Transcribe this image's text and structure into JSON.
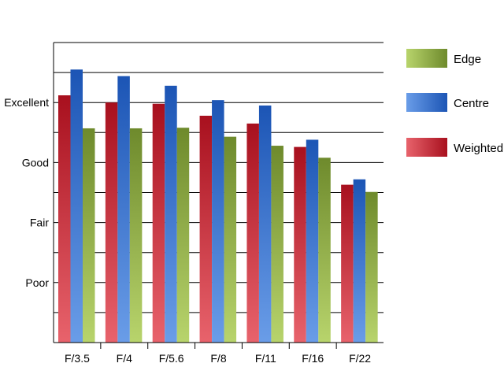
{
  "chart_data": {
    "type": "bar",
    "title": "",
    "xlabel": "",
    "ylabel": "",
    "categories": [
      "F/3.5",
      "F/4",
      "F/5.6",
      "F/8",
      "F/11",
      "F/16",
      "F/22"
    ],
    "ylim": [
      0,
      5
    ],
    "y_ticks": [
      {
        "label": "Poor",
        "value": 1
      },
      {
        "label": "Fair",
        "value": 2
      },
      {
        "label": "Good",
        "value": 3
      },
      {
        "label": "Excellent",
        "value": 4
      }
    ],
    "grid": true,
    "legend_position": "right",
    "series": [
      {
        "name": "Weighted",
        "key": "weighted",
        "values": [
          4.12,
          4.0,
          3.98,
          3.78,
          3.65,
          3.26,
          2.63
        ]
      },
      {
        "name": "Centre",
        "key": "centre",
        "values": [
          4.55,
          4.44,
          4.28,
          4.04,
          3.95,
          3.38,
          2.72
        ]
      },
      {
        "name": "Edge",
        "key": "edge",
        "values": [
          3.57,
          3.57,
          3.58,
          3.43,
          3.28,
          3.08,
          2.51
        ]
      }
    ],
    "legend": [
      {
        "label": "Edge",
        "key": "edge"
      },
      {
        "label": "Centre",
        "key": "centre"
      },
      {
        "label": "Weighted",
        "key": "weighted"
      }
    ],
    "colors": {
      "weighted": {
        "light": "#e8636c",
        "dark": "#a8101e"
      },
      "centre": {
        "light": "#6a9de8",
        "dark": "#1c55b5"
      },
      "edge": {
        "light": "#b8d46c",
        "dark": "#6e8a2c"
      }
    }
  }
}
